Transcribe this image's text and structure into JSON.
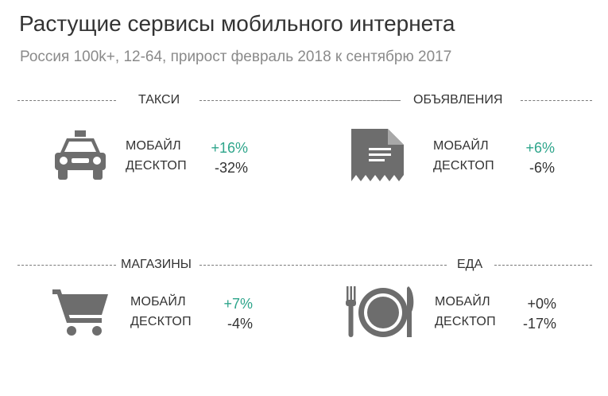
{
  "header": {
    "title": "Растущие сервисы мобильного интернета",
    "subtitle": "Россия 100k+, 12-64, прирост февраль 2018 к сентябрю 2017"
  },
  "colors": {
    "positive": "#2ea58b",
    "neutral": "#333333",
    "icon": "#6d6d6d"
  },
  "chart_data": {
    "type": "table",
    "title": "Растущие сервисы мобильного интернета",
    "subtitle": "Россия 100k+, 12-64, прирост февраль 2018 к сентябрю 2017",
    "row_labels": [
      "МОБАЙЛ",
      "ДЕСКТОП"
    ],
    "categories": [
      {
        "name": "ТАКСИ",
        "icon": "taxi-icon",
        "mobile": "+16%",
        "desktop": "-32%"
      },
      {
        "name": "ОБЪЯВЛЕНИЯ",
        "icon": "classifieds-icon",
        "mobile": "+6%",
        "desktop": "-6%"
      },
      {
        "name": "МАГАЗИНЫ",
        "icon": "cart-icon",
        "mobile": "+7%",
        "desktop": "-4%"
      },
      {
        "name": "ЕДА",
        "icon": "food-icon",
        "mobile": "+0%",
        "desktop": "-17%"
      }
    ]
  }
}
